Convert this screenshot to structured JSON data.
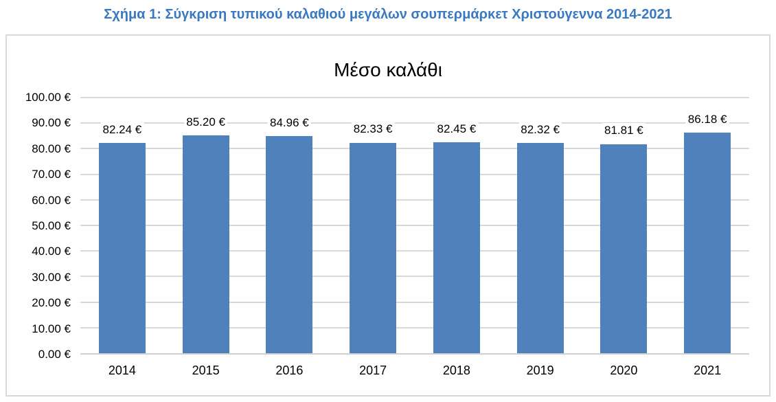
{
  "page": {
    "caption": "Σχήμα 1: Σύγκριση τυπικού καλαθιού μεγάλων σουπερμάρκετ Χριστούγεννα 2014-2021"
  },
  "colors": {
    "caption_text": "#3A78C2",
    "bar_fill": "#4F81BD",
    "gridline": "#D9D9D9",
    "chart_border": "#D9D9D9",
    "axis_line": "#D0D0D0",
    "label_text": "#000000",
    "background": "#FFFFFF"
  },
  "chart_data": {
    "type": "bar",
    "title": "Μέσο καλάθι",
    "categories": [
      "2014",
      "2015",
      "2016",
      "2017",
      "2018",
      "2019",
      "2020",
      "2021"
    ],
    "values": [
      82.24,
      85.2,
      84.96,
      82.33,
      82.45,
      82.32,
      81.81,
      86.18
    ],
    "value_labels": [
      "82.24 €",
      "85.20 €",
      "84.96 €",
      "82.33 €",
      "82.45 €",
      "82.32 €",
      "81.81 €",
      "86.18 €"
    ],
    "xlabel": "",
    "ylabel": "",
    "ylim": [
      0,
      100
    ],
    "y_tick_step": 10,
    "y_tick_labels": [
      "0.00 €",
      "10.00 €",
      "20.00 €",
      "30.00 €",
      "40.00 €",
      "50.00 €",
      "60.00 €",
      "70.00 €",
      "80.00 €",
      "90.00 €",
      "100.00 €"
    ],
    "grid": true,
    "legend": "none",
    "currency_symbol": "€"
  }
}
